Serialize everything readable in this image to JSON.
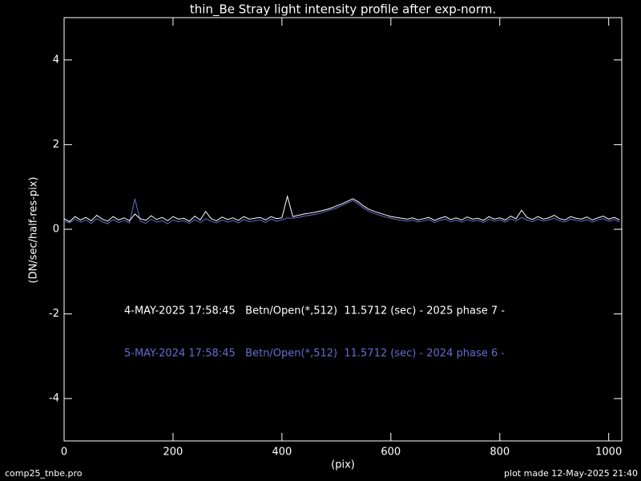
{
  "chart_data": {
    "type": "line",
    "title": "thin_Be Stray light intensity profile after exp-norm.",
    "x_label": "(pix)",
    "y_label": "(DN/sec/half-res-pix)",
    "footer_left": "comp25_tnbe.pro",
    "footer_right": "plot made 12-May-2025 21:40",
    "xlim": [
      0,
      1024
    ],
    "ylim": [
      -5,
      5
    ],
    "xticks": [
      0,
      200,
      400,
      600,
      800,
      1000
    ],
    "yticks": [
      -4,
      -2,
      0,
      2,
      4
    ],
    "x": [
      0,
      10,
      20,
      30,
      40,
      50,
      60,
      70,
      80,
      90,
      100,
      110,
      120,
      130,
      140,
      150,
      160,
      170,
      180,
      190,
      200,
      210,
      220,
      230,
      240,
      250,
      260,
      270,
      280,
      290,
      300,
      310,
      320,
      330,
      340,
      350,
      360,
      370,
      380,
      390,
      400,
      410,
      420,
      430,
      440,
      450,
      460,
      470,
      480,
      490,
      500,
      510,
      520,
      530,
      540,
      550,
      560,
      570,
      580,
      590,
      600,
      610,
      620,
      630,
      640,
      650,
      660,
      670,
      680,
      690,
      700,
      710,
      720,
      730,
      740,
      750,
      760,
      770,
      780,
      790,
      800,
      810,
      820,
      830,
      840,
      850,
      860,
      870,
      880,
      890,
      900,
      910,
      920,
      930,
      940,
      950,
      960,
      970,
      980,
      990,
      1000,
      1010,
      1020
    ],
    "series": [
      {
        "name": "4-MAY-2025 17:58:45   Betn/Open(*,512)  11.5712 (sec) - 2025 phase 7 -",
        "color": "#ffffff",
        "values": [
          0.25,
          0.18,
          0.3,
          0.22,
          0.28,
          0.2,
          0.33,
          0.24,
          0.19,
          0.3,
          0.22,
          0.27,
          0.2,
          0.36,
          0.25,
          0.21,
          0.32,
          0.23,
          0.28,
          0.2,
          0.3,
          0.24,
          0.26,
          0.19,
          0.31,
          0.22,
          0.42,
          0.25,
          0.2,
          0.29,
          0.23,
          0.27,
          0.21,
          0.3,
          0.24,
          0.26,
          0.28,
          0.22,
          0.3,
          0.25,
          0.27,
          0.78,
          0.3,
          0.33,
          0.36,
          0.38,
          0.4,
          0.43,
          0.46,
          0.5,
          0.55,
          0.6,
          0.66,
          0.72,
          0.65,
          0.55,
          0.47,
          0.42,
          0.38,
          0.34,
          0.3,
          0.28,
          0.26,
          0.24,
          0.27,
          0.22,
          0.25,
          0.28,
          0.21,
          0.26,
          0.3,
          0.23,
          0.27,
          0.22,
          0.29,
          0.24,
          0.26,
          0.21,
          0.3,
          0.24,
          0.27,
          0.22,
          0.31,
          0.25,
          0.45,
          0.28,
          0.23,
          0.3,
          0.24,
          0.27,
          0.33,
          0.25,
          0.22,
          0.3,
          0.26,
          0.24,
          0.29,
          0.22,
          0.27,
          0.31,
          0.24,
          0.28,
          0.22
        ]
      },
      {
        "name": "5-MAY-2024 17:58:45   Betn/Open(*,512)  11.5712 (sec) - 2024 phase 6 -",
        "color": "#6a6ad0",
        "values": [
          0.2,
          0.15,
          0.24,
          0.17,
          0.22,
          0.14,
          0.25,
          0.18,
          0.13,
          0.23,
          0.16,
          0.21,
          0.15,
          0.72,
          0.19,
          0.14,
          0.24,
          0.17,
          0.2,
          0.13,
          0.22,
          0.18,
          0.2,
          0.14,
          0.23,
          0.16,
          0.25,
          0.19,
          0.15,
          0.22,
          0.17,
          0.21,
          0.15,
          0.23,
          0.18,
          0.2,
          0.22,
          0.16,
          0.24,
          0.19,
          0.22,
          0.27,
          0.26,
          0.28,
          0.31,
          0.33,
          0.35,
          0.38,
          0.42,
          0.46,
          0.5,
          0.56,
          0.62,
          0.68,
          0.6,
          0.5,
          0.42,
          0.37,
          0.33,
          0.29,
          0.26,
          0.23,
          0.21,
          0.19,
          0.22,
          0.17,
          0.2,
          0.23,
          0.16,
          0.21,
          0.24,
          0.18,
          0.22,
          0.17,
          0.23,
          0.19,
          0.21,
          0.16,
          0.24,
          0.19,
          0.22,
          0.17,
          0.25,
          0.2,
          0.28,
          0.22,
          0.18,
          0.24,
          0.19,
          0.22,
          0.26,
          0.2,
          0.17,
          0.24,
          0.21,
          0.19,
          0.23,
          0.17,
          0.22,
          0.25,
          0.19,
          0.23,
          0.17
        ]
      }
    ]
  }
}
